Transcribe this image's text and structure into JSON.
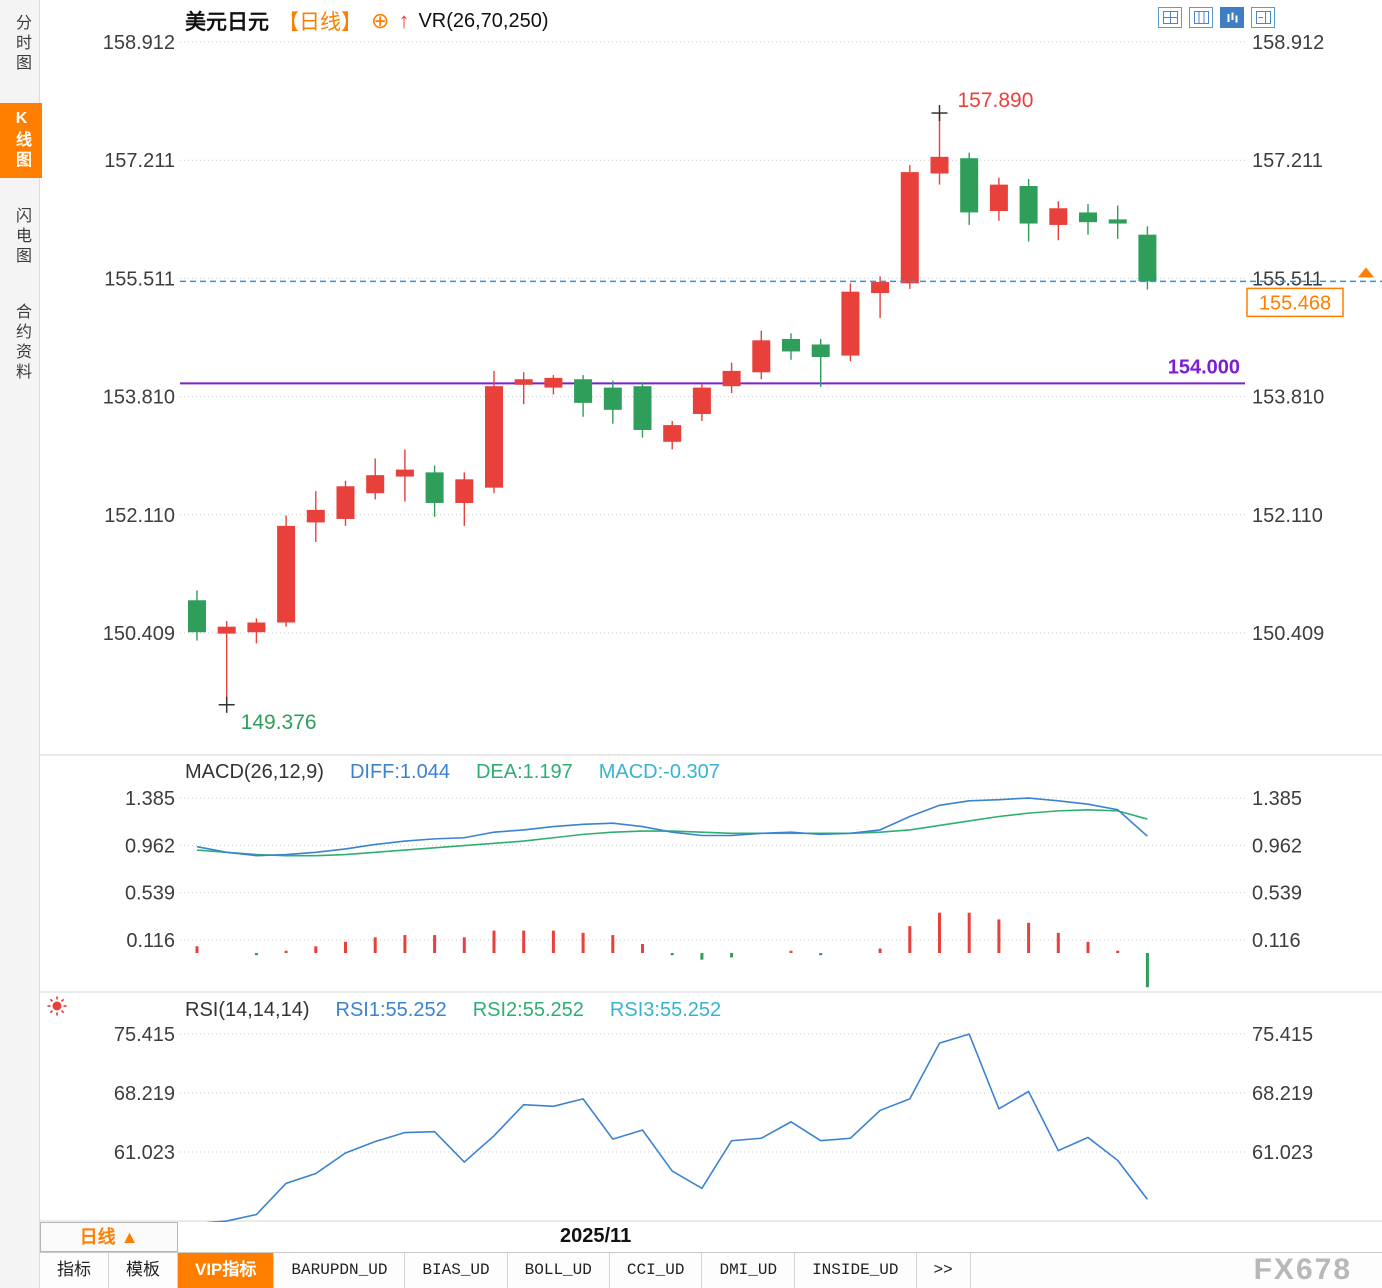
{
  "sidebar": {
    "items": [
      {
        "label": "分时图",
        "active": false
      },
      {
        "label": "K线图",
        "active": true
      },
      {
        "label": "闪电图",
        "active": false
      },
      {
        "label": "合约资料",
        "active": false
      }
    ]
  },
  "header": {
    "symbol": "美元日元",
    "period": "【日线】",
    "plus_icon": "⊕",
    "arrow_icon": "↑",
    "indicator": "VR(26,70,250)"
  },
  "toolbar_icons": [
    "layout-quad-icon",
    "layout-compare-icon",
    "layout-kline-icon",
    "layout-split-icon"
  ],
  "macd_header": {
    "title": "MACD(26,12,9)",
    "diff": "DIFF:1.044",
    "dea": "DEA:1.197",
    "macd": "MACD:-0.307"
  },
  "rsi_header": {
    "title": "RSI(14,14,14)",
    "rsi1": "RSI1:55.252",
    "rsi2": "RSI2:55.252",
    "rsi3": "RSI3:55.252"
  },
  "period_button": {
    "label": "日线",
    "arrow": "▲"
  },
  "bottom_tabs": [
    {
      "label": "指标",
      "active": false
    },
    {
      "label": "模板",
      "active": false
    },
    {
      "label": "VIP指标",
      "active": true
    },
    {
      "label": "BARUPDN_UD",
      "active": false
    },
    {
      "label": "BIAS_UD",
      "active": false
    },
    {
      "label": "BOLL_UD",
      "active": false
    },
    {
      "label": "CCI_UD",
      "active": false
    },
    {
      "label": "DMI_UD",
      "active": false
    },
    {
      "label": "INSIDE_UD",
      "active": false
    },
    {
      "label": ">>",
      "active": false
    }
  ],
  "watermark": "FX678",
  "colors": {
    "up": "#e8403a",
    "down": "#2e9e5a",
    "diff": "#3b82d0",
    "dea": "#2fae72",
    "macdline": "#36b3d2",
    "rsi1": "#3b82d0",
    "rsi2": "#2fae72",
    "rsi3": "#36b3d2",
    "accent": "#ff7e00",
    "purple": "#7d1fd1",
    "dash": "#3a8ee6",
    "grid": "#c9c9c9"
  },
  "chart_data": {
    "type": "candlestick",
    "symbol": "美元日元 (USD/JPY)",
    "timeframe": "日线",
    "x_label": "2025/11",
    "y_axis_values": [
      158.912,
      157.211,
      155.511,
      153.81,
      152.11,
      150.409
    ],
    "candles": [
      [
        150.88,
        151.02,
        150.3,
        150.42
      ],
      [
        150.4,
        150.58,
        149.376,
        150.5
      ],
      [
        150.42,
        150.62,
        150.26,
        150.56
      ],
      [
        150.56,
        152.1,
        150.5,
        151.95
      ],
      [
        152.0,
        152.45,
        151.72,
        152.18
      ],
      [
        152.05,
        152.6,
        151.95,
        152.52
      ],
      [
        152.42,
        152.92,
        152.33,
        152.68
      ],
      [
        152.66,
        153.05,
        152.3,
        152.76
      ],
      [
        152.72,
        152.82,
        152.08,
        152.28
      ],
      [
        152.28,
        152.72,
        151.95,
        152.62
      ],
      [
        152.5,
        154.18,
        152.42,
        153.96
      ],
      [
        153.98,
        154.16,
        153.7,
        154.06
      ],
      [
        153.94,
        154.12,
        153.84,
        154.08
      ],
      [
        154.06,
        154.12,
        153.52,
        153.72
      ],
      [
        153.94,
        154.04,
        153.42,
        153.62
      ],
      [
        153.96,
        154.02,
        153.22,
        153.33
      ],
      [
        153.16,
        153.46,
        153.05,
        153.4
      ],
      [
        153.56,
        154.0,
        153.46,
        153.94
      ],
      [
        153.96,
        154.3,
        153.86,
        154.18
      ],
      [
        154.16,
        154.76,
        154.06,
        154.62
      ],
      [
        154.64,
        154.72,
        154.34,
        154.46
      ],
      [
        154.56,
        154.64,
        153.95,
        154.38
      ],
      [
        154.4,
        155.44,
        154.32,
        155.32
      ],
      [
        155.3,
        155.54,
        154.94,
        155.46
      ],
      [
        155.44,
        157.14,
        155.36,
        157.04
      ],
      [
        157.02,
        157.89,
        156.86,
        157.26
      ],
      [
        157.24,
        157.32,
        156.28,
        156.46
      ],
      [
        156.48,
        156.96,
        156.34,
        156.86
      ],
      [
        156.84,
        156.94,
        156.04,
        156.3
      ],
      [
        156.28,
        156.62,
        156.06,
        156.52
      ],
      [
        156.46,
        156.58,
        156.14,
        156.32
      ],
      [
        156.36,
        156.56,
        156.08,
        156.3
      ],
      [
        156.14,
        156.26,
        155.35,
        155.468
      ]
    ],
    "hline": {
      "value": 154.0,
      "label": "154.000"
    },
    "high_marker": {
      "index": 25,
      "price": 157.89,
      "label": "157.890"
    },
    "low_marker": {
      "index": 1,
      "price": 149.376,
      "label": "149.376"
    },
    "last_price": {
      "value": 155.468,
      "label": "155.468"
    },
    "macd": {
      "params": "26,12,9",
      "diff_last": 1.044,
      "dea_last": 1.197,
      "macd_last": -0.307,
      "axis": [
        1.385,
        0.962,
        0.539,
        0.116
      ],
      "diff": [
        0.95,
        0.9,
        0.87,
        0.88,
        0.9,
        0.93,
        0.97,
        1.0,
        1.02,
        1.03,
        1.08,
        1.1,
        1.13,
        1.15,
        1.16,
        1.13,
        1.08,
        1.05,
        1.05,
        1.07,
        1.08,
        1.06,
        1.07,
        1.1,
        1.22,
        1.32,
        1.36,
        1.37,
        1.385,
        1.36,
        1.33,
        1.28,
        1.044
      ],
      "dea": [
        0.92,
        0.9,
        0.88,
        0.87,
        0.87,
        0.88,
        0.9,
        0.92,
        0.94,
        0.96,
        0.98,
        1.0,
        1.03,
        1.06,
        1.08,
        1.09,
        1.09,
        1.08,
        1.07,
        1.07,
        1.07,
        1.07,
        1.07,
        1.08,
        1.1,
        1.14,
        1.18,
        1.22,
        1.25,
        1.27,
        1.28,
        1.27,
        1.197
      ]
    },
    "rsi": {
      "params": "14,14,14",
      "rsi_last": 55.252,
      "axis": [
        75.415,
        68.219,
        61.023
      ],
      "values": [
        52.3,
        52.6,
        53.4,
        57.2,
        58.4,
        60.9,
        62.3,
        63.4,
        63.5,
        59.8,
        63.0,
        66.8,
        66.6,
        67.5,
        62.6,
        63.7,
        58.7,
        56.6,
        62.4,
        62.7,
        64.7,
        62.4,
        62.7,
        66.1,
        67.5,
        74.3,
        75.4,
        66.3,
        68.4,
        61.2,
        62.8,
        60.0,
        55.252
      ]
    }
  }
}
